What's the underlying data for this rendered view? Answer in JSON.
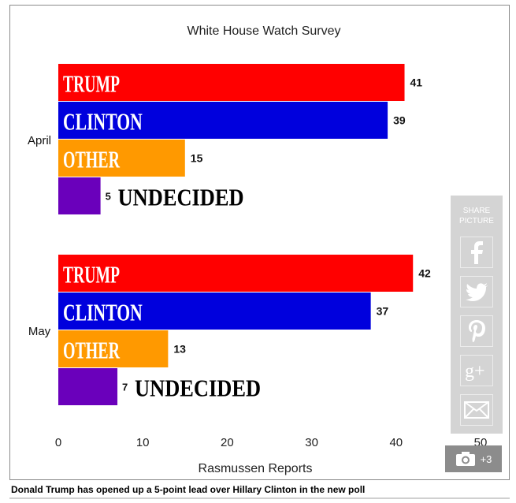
{
  "chart_data": {
    "type": "bar",
    "orientation": "horizontal",
    "title": "White House Watch Survey",
    "xlabel": "Rasmussen Reports",
    "xlim": [
      0,
      50
    ],
    "xticks": [
      "0",
      "10",
      "20",
      "30",
      "40",
      "50"
    ],
    "grid": false,
    "groups": [
      {
        "name": "April",
        "bars": [
          {
            "label": "TRUMP",
            "value": 41,
            "color": "#ff0000"
          },
          {
            "label": "CLINTON",
            "value": 39,
            "color": "#0000dd"
          },
          {
            "label": "OTHER",
            "value": 15,
            "color": "#ff9900"
          },
          {
            "label": "UNDECIDED",
            "value": 5,
            "color": "#6a00bb"
          }
        ]
      },
      {
        "name": "May",
        "bars": [
          {
            "label": "TRUMP",
            "value": 42,
            "color": "#ff0000"
          },
          {
            "label": "CLINTON",
            "value": 37,
            "color": "#0000dd"
          },
          {
            "label": "OTHER",
            "value": 13,
            "color": "#ff9900"
          },
          {
            "label": "UNDECIDED",
            "value": 7,
            "color": "#6a00bb"
          }
        ]
      }
    ]
  },
  "share": {
    "title_line1": "SHARE",
    "title_line2": "PICTURE",
    "buttons": [
      "facebook-icon",
      "twitter-icon",
      "pinterest-icon",
      "google-plus-icon",
      "email-icon"
    ]
  },
  "photo_count": "+3",
  "caption": "Donald Trump has opened up a 5-point lead over Hillary Clinton in the new poll"
}
